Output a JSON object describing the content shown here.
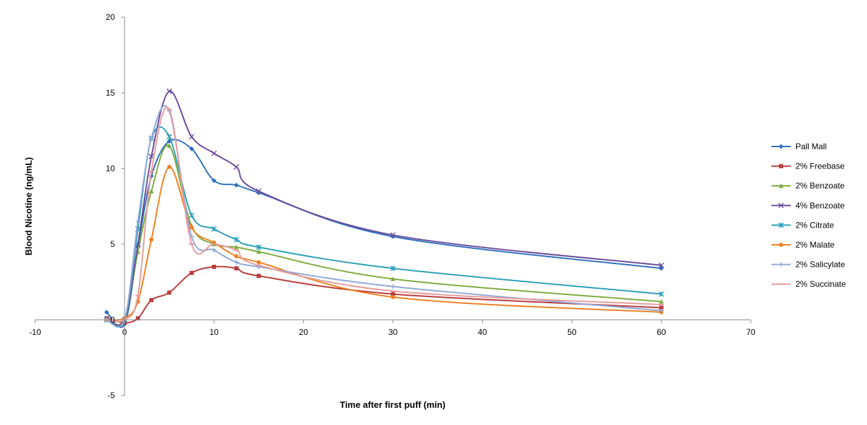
{
  "chart_data": {
    "type": "line",
    "title": "",
    "xlabel": "Time after first puff (min)",
    "ylabel": "Blood Nicotine (ng/mL)",
    "xlim": [
      -10,
      70
    ],
    "ylim": [
      -5,
      20
    ],
    "x_ticks": [
      "-10",
      "0",
      "10",
      "20",
      "30",
      "40",
      "50",
      "60",
      "70"
    ],
    "y_ticks": [
      "-5",
      "0",
      "5",
      "10",
      "15",
      "20"
    ],
    "grid": false,
    "legend_position": "right",
    "series": [
      {
        "name": "Pall Mall",
        "color": "#2e6fbf",
        "marker": "diamond",
        "points": [
          [
            -2,
            0.5
          ],
          [
            0,
            -0.3
          ],
          [
            1.5,
            4.8
          ],
          [
            3,
            9.5
          ],
          [
            5,
            11.8
          ],
          [
            7.5,
            11.3
          ],
          [
            10,
            9.2
          ],
          [
            12.5,
            8.9
          ],
          [
            15,
            8.4
          ],
          [
            30,
            5.5
          ],
          [
            60,
            3.4
          ]
        ]
      },
      {
        "name": "2% Freebase",
        "color": "#b83a3a",
        "marker": "square",
        "points": [
          [
            -2,
            0.1
          ],
          [
            0,
            -0.2
          ],
          [
            1.5,
            0.1
          ],
          [
            3,
            1.3
          ],
          [
            5,
            1.8
          ],
          [
            7.5,
            3.1
          ],
          [
            10,
            3.5
          ],
          [
            12.5,
            3.4
          ],
          [
            15,
            2.9
          ],
          [
            30,
            1.7
          ],
          [
            60,
            0.8
          ]
        ]
      },
      {
        "name": "2% Benzoate",
        "color": "#7cab3c",
        "marker": "triangle",
        "points": [
          [
            -2,
            0.0
          ],
          [
            0,
            0.0
          ],
          [
            1.5,
            4.5
          ],
          [
            3,
            8.5
          ],
          [
            5,
            11.5
          ],
          [
            7.5,
            6.2
          ],
          [
            10,
            5.0
          ],
          [
            12.5,
            4.8
          ],
          [
            15,
            4.5
          ],
          [
            30,
            2.7
          ],
          [
            60,
            1.2
          ]
        ]
      },
      {
        "name": "4% Benzoate",
        "color": "#6b4c9a",
        "marker": "x",
        "points": [
          [
            -2,
            0.0
          ],
          [
            0,
            0.0
          ],
          [
            1.5,
            5.0
          ],
          [
            3,
            10.8
          ],
          [
            5,
            15.1
          ],
          [
            7.5,
            12.1
          ],
          [
            10,
            11.0
          ],
          [
            12.5,
            10.1
          ],
          [
            15,
            8.5
          ],
          [
            30,
            5.6
          ],
          [
            60,
            3.6
          ]
        ]
      },
      {
        "name": "2% Citrate",
        "color": "#2aa0b8",
        "marker": "asterisk",
        "points": [
          [
            -2,
            0.0
          ],
          [
            0,
            0.0
          ],
          [
            1.5,
            6.0
          ],
          [
            3,
            12.0
          ],
          [
            5,
            12.1
          ],
          [
            7.5,
            6.9
          ],
          [
            10,
            6.0
          ],
          [
            12.5,
            5.3
          ],
          [
            15,
            4.8
          ],
          [
            30,
            3.4
          ],
          [
            60,
            1.7
          ]
        ]
      },
      {
        "name": "2% Malate",
        "color": "#f07f1f",
        "marker": "circle",
        "points": [
          [
            -2,
            0.0
          ],
          [
            0,
            0.1
          ],
          [
            1.5,
            1.2
          ],
          [
            3,
            5.3
          ],
          [
            5,
            10.1
          ],
          [
            7.5,
            6.1
          ],
          [
            10,
            5.1
          ],
          [
            12.5,
            4.2
          ],
          [
            15,
            3.8
          ],
          [
            30,
            1.5
          ],
          [
            60,
            0.5
          ]
        ]
      },
      {
        "name": "2% Salicylate",
        "color": "#8fa8d8",
        "marker": "plus",
        "points": [
          [
            -2,
            0.0
          ],
          [
            0,
            0.0
          ],
          [
            1.5,
            6.5
          ],
          [
            3,
            12.0
          ],
          [
            5,
            13.8
          ],
          [
            7.5,
            5.5
          ],
          [
            10,
            4.6
          ],
          [
            12.5,
            3.8
          ],
          [
            15,
            3.5
          ],
          [
            30,
            2.2
          ],
          [
            60,
            0.6
          ]
        ]
      },
      {
        "name": "2% Succinate",
        "color": "#e89a9a",
        "marker": "dash",
        "points": [
          [
            -2,
            0.0
          ],
          [
            0,
            0.0
          ],
          [
            1.5,
            1.6
          ],
          [
            3,
            9.8
          ],
          [
            5,
            13.9
          ],
          [
            7.5,
            5.0
          ],
          [
            10,
            5.0
          ],
          [
            12.5,
            4.6
          ],
          [
            15,
            3.6
          ],
          [
            30,
            1.9
          ],
          [
            60,
            1.0
          ]
        ]
      }
    ]
  }
}
